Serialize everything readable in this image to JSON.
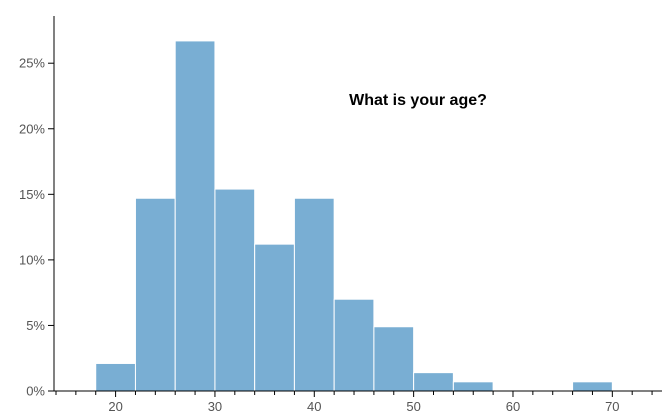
{
  "chart_data": {
    "type": "bar",
    "title": "What is your age?",
    "xlabel": "",
    "ylabel": "",
    "bin_width": 4,
    "bins": [
      {
        "x0": 18,
        "x1": 22,
        "value": 2.1
      },
      {
        "x0": 22,
        "x1": 26,
        "value": 14.7
      },
      {
        "x0": 26,
        "x1": 30,
        "value": 26.7
      },
      {
        "x0": 30,
        "x1": 34,
        "value": 15.4
      },
      {
        "x0": 34,
        "x1": 38,
        "value": 11.2
      },
      {
        "x0": 38,
        "x1": 42,
        "value": 14.7
      },
      {
        "x0": 42,
        "x1": 46,
        "value": 7.0
      },
      {
        "x0": 46,
        "x1": 50,
        "value": 4.9
      },
      {
        "x0": 50,
        "x1": 54,
        "value": 1.4
      },
      {
        "x0": 54,
        "x1": 58,
        "value": 0.7
      },
      {
        "x0": 66,
        "x1": 70,
        "value": 0.7
      }
    ],
    "xlim": [
      13.8,
      75
    ],
    "ylim": [
      0,
      28.6
    ],
    "x_ticks": [
      20,
      30,
      40,
      50,
      60,
      70
    ],
    "x_tick_labels": [
      "20",
      "30",
      "40",
      "50",
      "60",
      "70"
    ],
    "x_minor_step": 2,
    "y_ticks": [
      0,
      5,
      10,
      15,
      20,
      25
    ],
    "y_tick_labels": [
      "0%",
      "5%",
      "10%",
      "15%",
      "20%",
      "25%"
    ],
    "grid": false,
    "bar_color": "#79aed3",
    "bar_stroke": "#ffffff"
  }
}
